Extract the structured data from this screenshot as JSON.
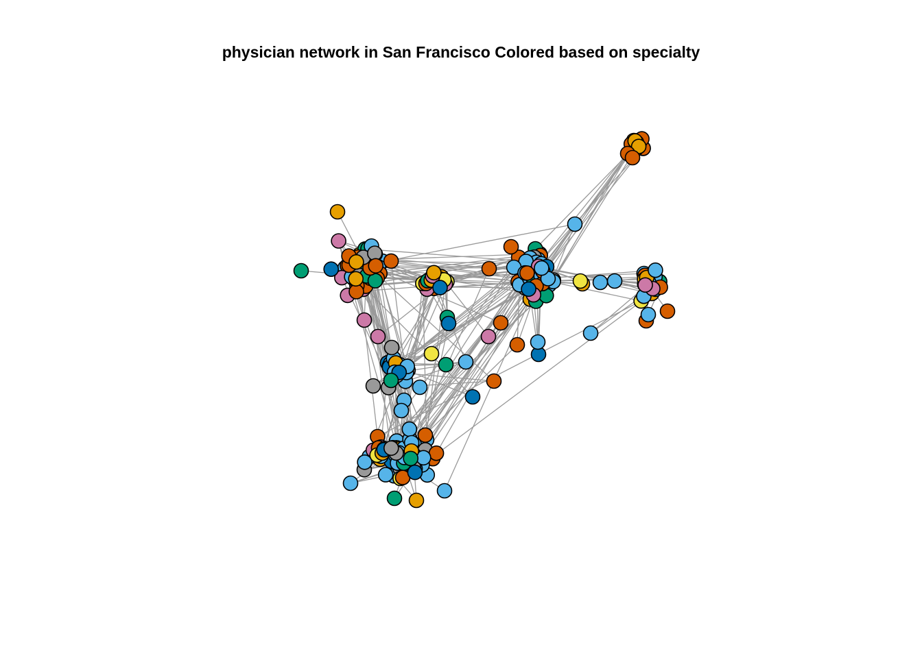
{
  "title": "physician network in San Francisco Colored based on specialty",
  "edge_color": "#999999",
  "node_border_color": "#000000",
  "palette": {
    "orange": "#E69F00",
    "sky_blue": "#56B4E9",
    "green": "#009E73",
    "yellow": "#F0E442",
    "blue": "#0072B2",
    "vermillion": "#D55E00",
    "pink": "#CC79A7",
    "gray": "#999999"
  }
}
